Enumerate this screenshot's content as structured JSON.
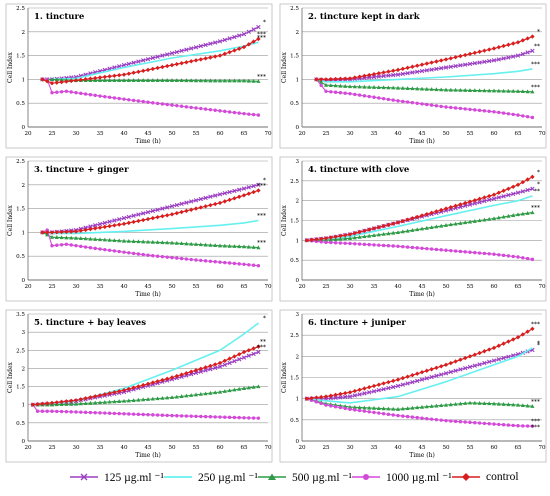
{
  "series_styles": [
    {
      "name": "125 µg.ml⁻¹",
      "color": "#9b3fc3",
      "marker": "x"
    },
    {
      "name": "250 µg.ml⁻¹",
      "color": "#66f0f0",
      "marker": "none"
    },
    {
      "name": "500 µg.ml⁻¹",
      "color": "#2f9b47",
      "marker": "triangle"
    },
    {
      "name": "1000 µg.ml⁻¹",
      "color": "#d34ad8",
      "marker": "circle"
    },
    {
      "name": "control",
      "color": "#d81e1e",
      "marker": "diamond"
    }
  ],
  "legend": {
    "items": [
      {
        "label": "125 µg.ml ⁻¹"
      },
      {
        "label": "250 µg.ml ⁻¹"
      },
      {
        "label": "500 µg.ml ⁻¹"
      },
      {
        "label": "1000 µg.ml ⁻¹"
      },
      {
        "label": "control"
      }
    ]
  },
  "chart_data": [
    {
      "type": "line",
      "title": "1. tincture",
      "xlabel": "Time (h)",
      "ylabel": "Cell Index",
      "xlim": [
        20,
        70
      ],
      "ylim": [
        0,
        2.5
      ],
      "xticks": [
        20,
        25,
        30,
        35,
        40,
        45,
        50,
        55,
        60,
        65,
        70
      ],
      "yticks": [
        0,
        0.5,
        1,
        1.5,
        2,
        2.5
      ],
      "grid": true,
      "annotations": [
        "*",
        "***",
        "***",
        "***"
      ],
      "series": [
        {
          "x": [
            23,
            25,
            30,
            40,
            50,
            60,
            65,
            68
          ],
          "values": [
            1.0,
            1.0,
            1.05,
            1.3,
            1.55,
            1.8,
            1.95,
            2.1
          ]
        },
        {
          "x": [
            23,
            25,
            30,
            40,
            50,
            60,
            65,
            68
          ],
          "values": [
            1.0,
            1.0,
            1.02,
            1.25,
            1.45,
            1.6,
            1.7,
            1.78
          ]
        },
        {
          "x": [
            23,
            25,
            30,
            40,
            50,
            60,
            65,
            68
          ],
          "values": [
            1.0,
            1.0,
            0.98,
            0.98,
            0.98,
            0.97,
            0.97,
            0.96
          ]
        },
        {
          "x": [
            23,
            24,
            25,
            28,
            35,
            45,
            55,
            65,
            68
          ],
          "values": [
            1.0,
            1.0,
            0.72,
            0.75,
            0.65,
            0.52,
            0.4,
            0.28,
            0.25
          ]
        },
        {
          "x": [
            23,
            25,
            30,
            40,
            50,
            60,
            65,
            68
          ],
          "values": [
            1.0,
            0.92,
            0.98,
            1.1,
            1.3,
            1.5,
            1.68,
            1.85
          ]
        }
      ]
    },
    {
      "type": "line",
      "title": "2. tincture kept in dark",
      "xlabel": "Time (h)",
      "ylabel": "Cell Index",
      "xlim": [
        20,
        70
      ],
      "ylim": [
        0,
        2.5
      ],
      "xticks": [
        20,
        25,
        30,
        35,
        40,
        45,
        50,
        55,
        60,
        65,
        70
      ],
      "yticks": [
        0,
        0.5,
        1,
        1.5,
        2,
        2.5
      ],
      "grid": true,
      "annotations": [
        "*",
        "**",
        "***",
        "***"
      ],
      "series": [
        {
          "x": [
            23,
            25,
            30,
            40,
            50,
            60,
            65,
            68
          ],
          "values": [
            1.0,
            0.98,
            1.0,
            1.1,
            1.25,
            1.4,
            1.5,
            1.6
          ]
        },
        {
          "x": [
            23,
            25,
            30,
            40,
            50,
            60,
            65,
            68
          ],
          "values": [
            1.0,
            0.95,
            0.95,
            1.0,
            1.05,
            1.12,
            1.17,
            1.22
          ]
        },
        {
          "x": [
            23,
            25,
            30,
            40,
            50,
            60,
            65,
            68
          ],
          "values": [
            1.0,
            0.88,
            0.85,
            0.82,
            0.78,
            0.76,
            0.75,
            0.74
          ]
        },
        {
          "x": [
            23,
            25,
            30,
            40,
            50,
            60,
            65,
            68
          ],
          "values": [
            1.0,
            0.75,
            0.7,
            0.55,
            0.42,
            0.32,
            0.25,
            0.2
          ]
        },
        {
          "x": [
            23,
            25,
            30,
            40,
            50,
            60,
            65,
            68
          ],
          "values": [
            1.0,
            1.0,
            1.02,
            1.2,
            1.42,
            1.65,
            1.78,
            1.9
          ]
        }
      ]
    },
    {
      "type": "line",
      "title": "3. tincture + ginger",
      "xlabel": "Time (h)",
      "ylabel": "Cell Index",
      "xlim": [
        20,
        70
      ],
      "ylim": [
        0,
        2.5
      ],
      "xticks": [
        20,
        25,
        30,
        35,
        40,
        45,
        50,
        55,
        60,
        65,
        70
      ],
      "yticks": [
        0,
        0.5,
        1,
        1.5,
        2,
        2.5
      ],
      "grid": true,
      "annotations": [
        "*",
        "***",
        "***",
        "***"
      ],
      "series": [
        {
          "x": [
            23,
            25,
            30,
            40,
            50,
            60,
            65,
            68
          ],
          "values": [
            1.0,
            1.0,
            1.05,
            1.3,
            1.55,
            1.8,
            1.92,
            2.0
          ]
        },
        {
          "x": [
            23,
            25,
            30,
            40,
            50,
            60,
            65,
            68
          ],
          "values": [
            1.0,
            0.98,
            0.98,
            1.02,
            1.08,
            1.15,
            1.2,
            1.25
          ]
        },
        {
          "x": [
            23,
            25,
            30,
            40,
            50,
            60,
            65,
            68
          ],
          "values": [
            1.0,
            0.9,
            0.88,
            0.82,
            0.78,
            0.72,
            0.7,
            0.68
          ]
        },
        {
          "x": [
            23,
            24,
            25,
            28,
            35,
            45,
            55,
            65,
            68
          ],
          "values": [
            1.0,
            1.05,
            0.72,
            0.75,
            0.65,
            0.52,
            0.42,
            0.33,
            0.3
          ]
        },
        {
          "x": [
            23,
            25,
            30,
            40,
            50,
            60,
            65,
            68
          ],
          "values": [
            1.0,
            1.0,
            1.02,
            1.18,
            1.38,
            1.62,
            1.78,
            1.88
          ]
        }
      ]
    },
    {
      "type": "line",
      "title": "4. tincture with clove",
      "xlabel": "Time (h)",
      "ylabel": "Cell Index",
      "xlim": [
        20,
        70
      ],
      "ylim": [
        0,
        3
      ],
      "xticks": [
        20,
        25,
        30,
        35,
        40,
        45,
        50,
        55,
        60,
        65,
        70
      ],
      "yticks": [
        0,
        0.5,
        1,
        1.5,
        2,
        2.5,
        3
      ],
      "grid": true,
      "annotations": [
        "*",
        "*",
        "**",
        "***"
      ],
      "series": [
        {
          "x": [
            21,
            25,
            30,
            40,
            50,
            60,
            65,
            68
          ],
          "values": [
            1.0,
            1.05,
            1.15,
            1.45,
            1.75,
            2.05,
            2.2,
            2.3
          ]
        },
        {
          "x": [
            21,
            25,
            30,
            40,
            50,
            60,
            65,
            68
          ],
          "values": [
            1.0,
            1.02,
            1.1,
            1.35,
            1.62,
            1.88,
            2.0,
            2.12
          ]
        },
        {
          "x": [
            21,
            25,
            30,
            40,
            50,
            60,
            65,
            68
          ],
          "values": [
            1.0,
            1.0,
            1.05,
            1.2,
            1.38,
            1.55,
            1.65,
            1.7
          ]
        },
        {
          "x": [
            21,
            25,
            30,
            40,
            50,
            60,
            65,
            68
          ],
          "values": [
            1.0,
            0.95,
            0.92,
            0.85,
            0.75,
            0.65,
            0.58,
            0.52
          ]
        },
        {
          "x": [
            21,
            25,
            30,
            40,
            50,
            60,
            65,
            68
          ],
          "values": [
            1.0,
            1.05,
            1.15,
            1.45,
            1.8,
            2.15,
            2.4,
            2.6
          ]
        }
      ]
    },
    {
      "type": "line",
      "title": "5. tincture + bay leaves",
      "xlabel": "Time (h)",
      "ylabel": "Cell Index",
      "xlim": [
        20,
        70
      ],
      "ylim": [
        0,
        3.5
      ],
      "xticks": [
        20,
        25,
        30,
        35,
        40,
        45,
        50,
        55,
        60,
        65,
        70
      ],
      "yticks": [
        0,
        0.5,
        1,
        1.5,
        2,
        2.5,
        3,
        3.5
      ],
      "grid": true,
      "annotations": [
        "*",
        "**",
        "***"
      ],
      "series": [
        {
          "x": [
            21,
            25,
            30,
            40,
            50,
            60,
            65,
            68
          ],
          "values": [
            1.0,
            1.02,
            1.1,
            1.35,
            1.7,
            2.05,
            2.3,
            2.45
          ]
        },
        {
          "x": [
            21,
            25,
            30,
            40,
            50,
            60,
            65,
            68
          ],
          "values": [
            1.0,
            1.02,
            1.1,
            1.45,
            1.95,
            2.5,
            2.95,
            3.25
          ]
        },
        {
          "x": [
            21,
            25,
            30,
            40,
            50,
            60,
            65,
            68
          ],
          "values": [
            1.0,
            1.0,
            1.02,
            1.1,
            1.2,
            1.35,
            1.45,
            1.5
          ]
        },
        {
          "x": [
            21,
            22,
            25,
            30,
            40,
            50,
            60,
            65,
            68
          ],
          "values": [
            1.0,
            0.82,
            0.82,
            0.8,
            0.75,
            0.7,
            0.66,
            0.64,
            0.63
          ]
        },
        {
          "x": [
            21,
            25,
            30,
            40,
            50,
            60,
            65,
            68
          ],
          "values": [
            1.0,
            1.05,
            1.12,
            1.4,
            1.75,
            2.15,
            2.45,
            2.6
          ]
        }
      ]
    },
    {
      "type": "line",
      "title": "6. tincture + juniper",
      "xlabel": "Time (h)",
      "ylabel": "Cell Index",
      "xlim": [
        20,
        70
      ],
      "ylim": [
        0,
        3
      ],
      "xticks": [
        20,
        25,
        30,
        35,
        40,
        45,
        50,
        55,
        60,
        65,
        70
      ],
      "yticks": [
        0,
        0.5,
        1,
        1.5,
        2,
        2.5,
        3
      ],
      "grid": true,
      "annotations": [
        "***",
        "*",
        "*",
        "***",
        "***",
        "***"
      ],
      "series": [
        {
          "x": [
            21,
            25,
            30,
            40,
            50,
            60,
            65,
            68
          ],
          "values": [
            1.0,
            1.0,
            1.05,
            1.3,
            1.6,
            1.9,
            2.05,
            2.15
          ]
        },
        {
          "x": [
            21,
            25,
            30,
            40,
            50,
            60,
            65,
            68
          ],
          "values": [
            1.0,
            0.95,
            0.9,
            1.05,
            1.4,
            1.8,
            2.0,
            2.2
          ]
        },
        {
          "x": [
            21,
            25,
            30,
            40,
            50,
            55,
            60,
            65,
            68
          ],
          "values": [
            1.0,
            0.88,
            0.8,
            0.75,
            0.85,
            0.9,
            0.88,
            0.85,
            0.82
          ]
        },
        {
          "x": [
            21,
            25,
            30,
            40,
            50,
            60,
            65,
            68
          ],
          "values": [
            1.0,
            0.85,
            0.75,
            0.6,
            0.48,
            0.4,
            0.36,
            0.35
          ]
        },
        {
          "x": [
            21,
            25,
            30,
            40,
            50,
            60,
            65,
            68
          ],
          "values": [
            1.0,
            1.05,
            1.15,
            1.45,
            1.8,
            2.2,
            2.45,
            2.65
          ]
        }
      ]
    }
  ]
}
